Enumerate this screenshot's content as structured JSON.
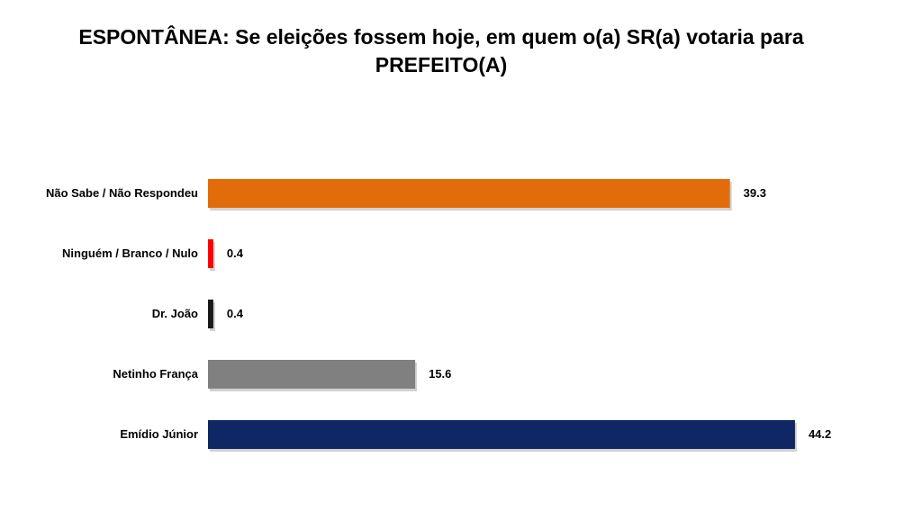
{
  "title": {
    "line1": "ESPONTÂNEA: Se eleições fossem hoje, em quem o(a) SR(a) votaria para",
    "line2": "PREFEITO(A)"
  },
  "chart_data": {
    "type": "bar",
    "orientation": "horizontal",
    "title": "ESPONTÂNEA: Se eleições fossem hoje, em quem o(a) SR(a) votaria para PREFEITO(A)",
    "categories": [
      "Não Sabe / Não Respondeu",
      "Ninguém / Branco / Nulo",
      "Dr. João",
      "Netinho França",
      "Emídio Júnior"
    ],
    "values": [
      39.3,
      0.4,
      0.4,
      15.6,
      44.2
    ],
    "value_labels": [
      "39.3",
      "0.4",
      "0.4",
      "15.6",
      "44.2"
    ],
    "colors": [
      "#E36C0A",
      "#FF0000",
      "#1A1A1A",
      "#808080",
      "#0F2765"
    ],
    "xlim": [
      0,
      50
    ],
    "grid": false,
    "legend": "none"
  }
}
